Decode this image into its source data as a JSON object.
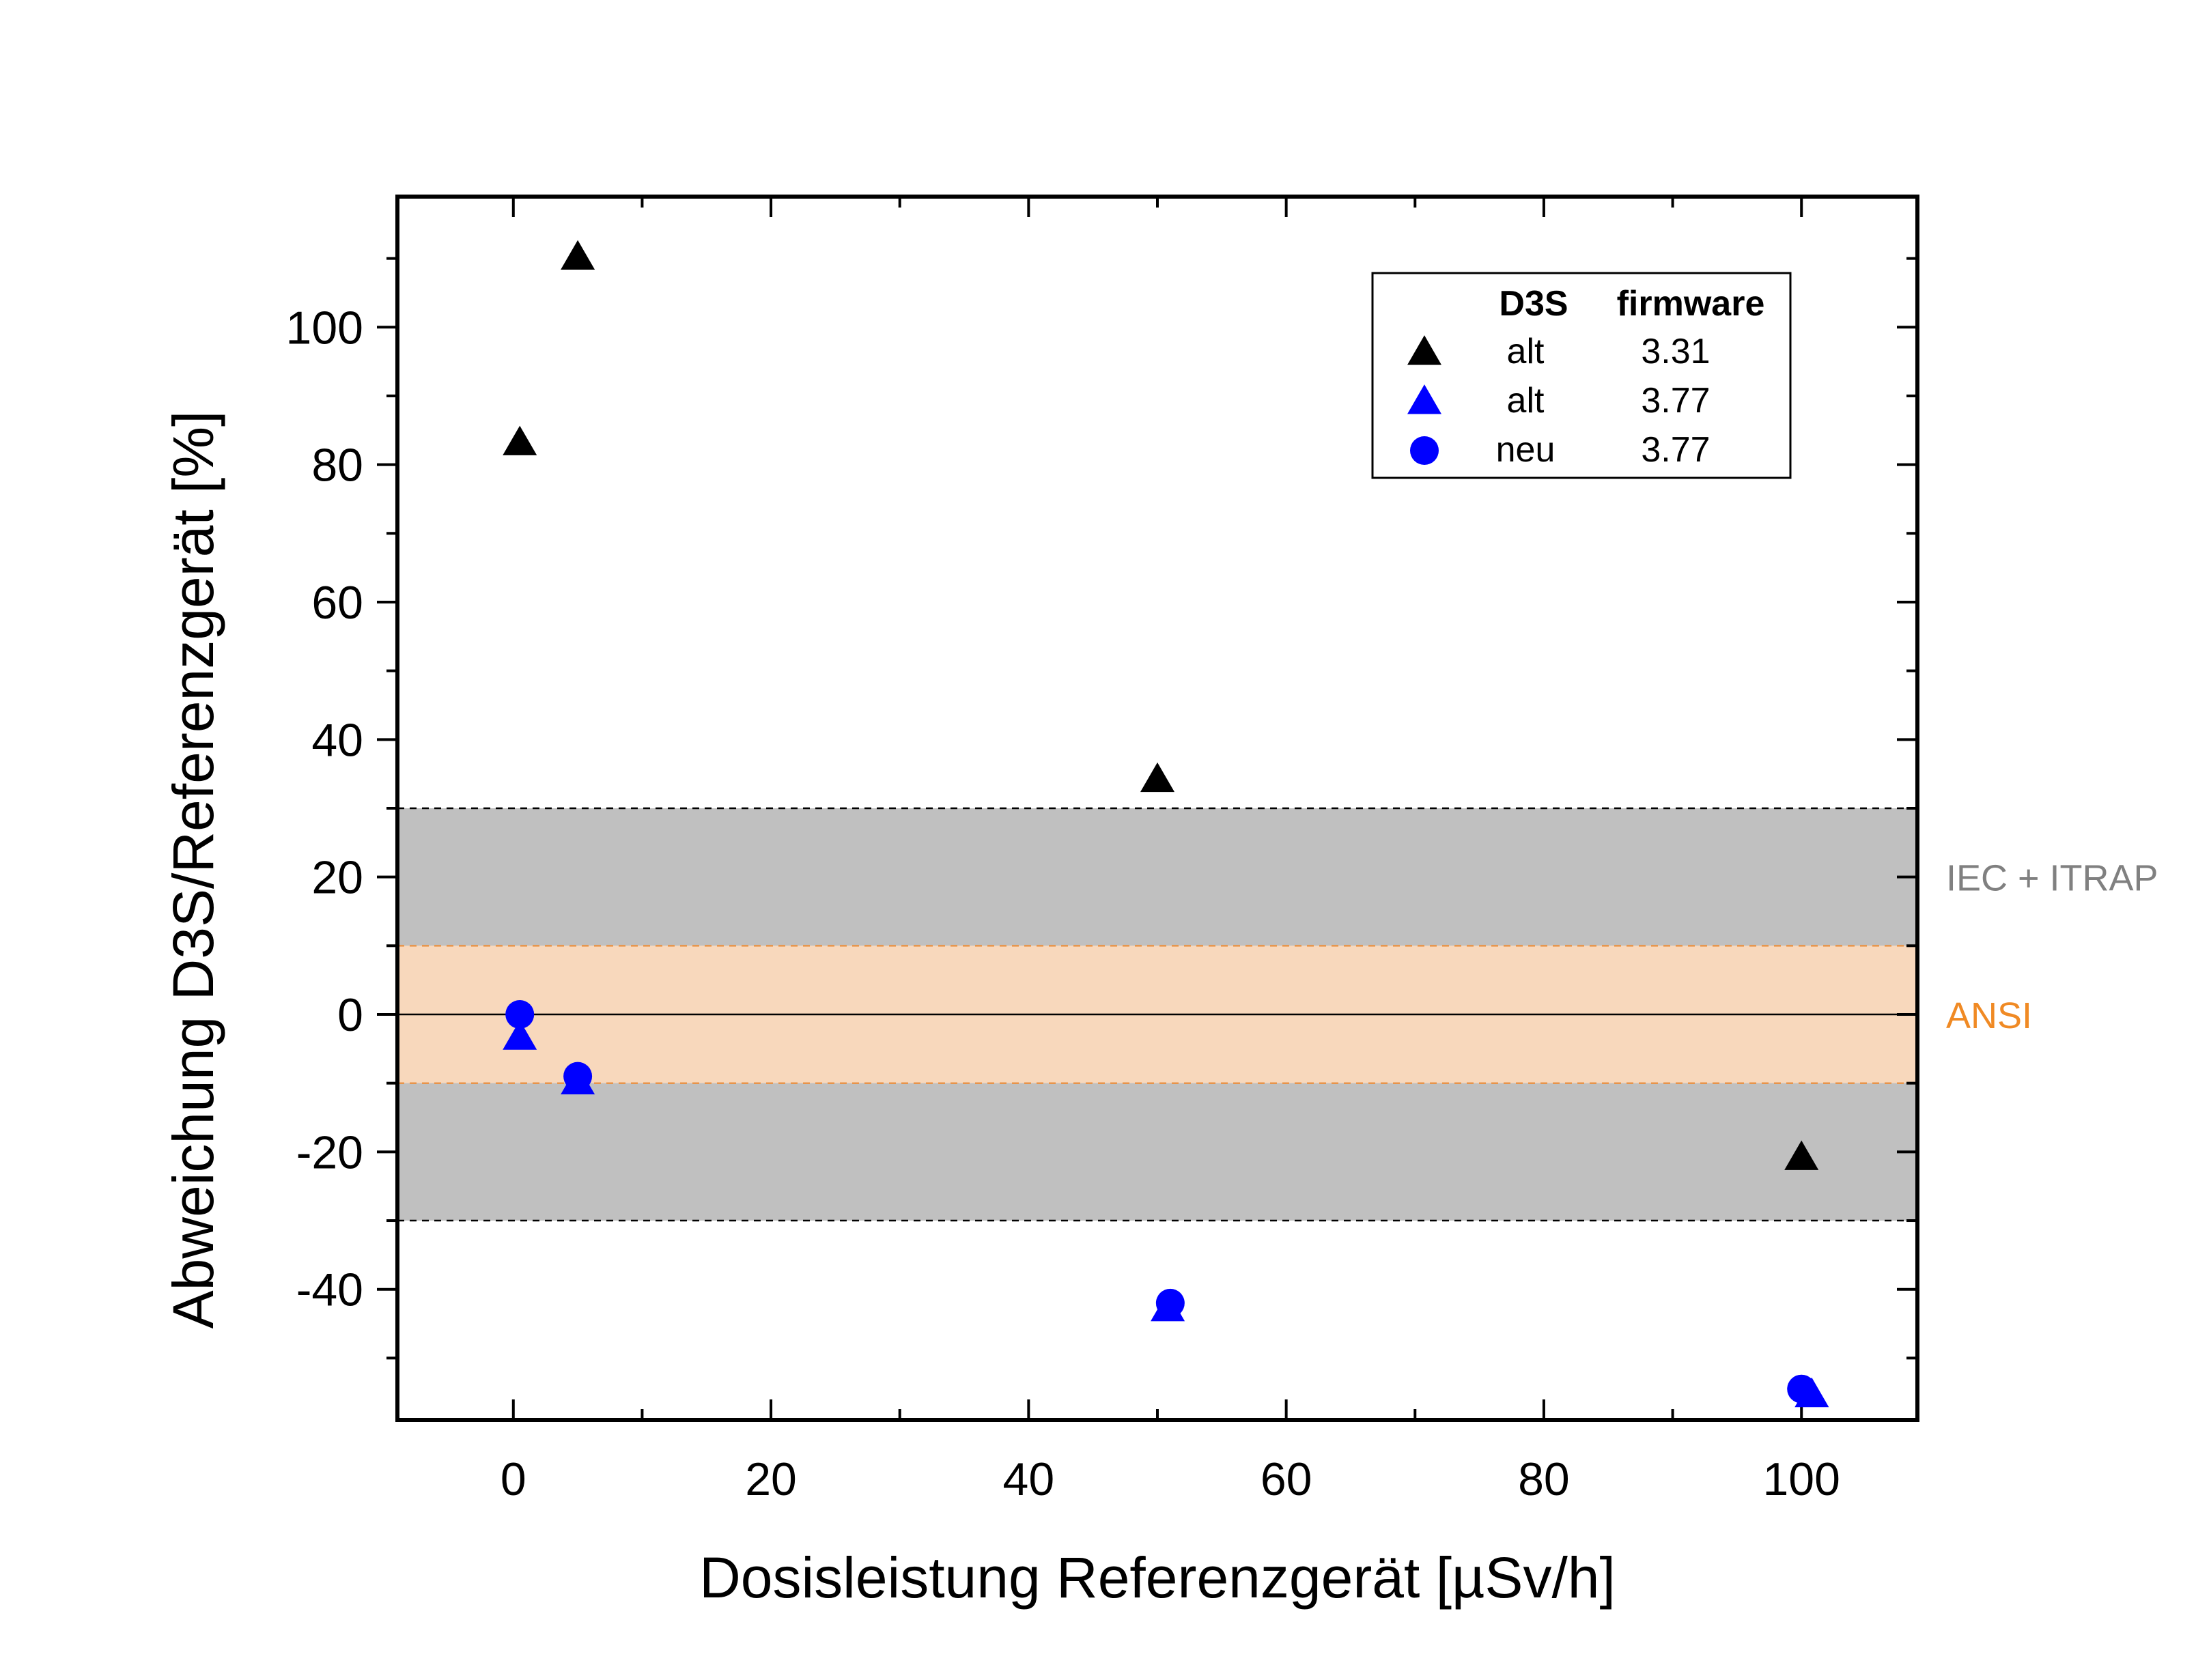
{
  "chart_data": {
    "type": "scatter",
    "title": "",
    "xlabel": "Dosisleistung Referenzgerät [µSv/h]",
    "ylabel": "Abweichung D3S/Referenzgerät [%]",
    "xlim": [
      -9,
      109
    ],
    "ylim": [
      -59,
      119
    ],
    "xticks": [
      0,
      20,
      40,
      60,
      80,
      100
    ],
    "yticks": [
      -40,
      -20,
      0,
      20,
      40,
      60,
      80,
      100
    ],
    "x_minor_step": 10,
    "y_minor_step": 10,
    "grid": false,
    "bands": [
      {
        "name": "IEC + ITRAP",
        "y0": -30,
        "y1": 30,
        "color": "#c0c0c0",
        "edge_color": "#000000",
        "label_color": "#808080"
      },
      {
        "name": "ANSI",
        "y0": -10,
        "y1": 10,
        "color": "#f8d8bc",
        "edge_color": "#e8944a",
        "label_color": "#f08a24"
      }
    ],
    "reference_line": 0,
    "legend": {
      "position": "top-right",
      "headers": [
        "D3S",
        "firmware"
      ]
    },
    "series": [
      {
        "d3s": "alt",
        "firmware": "3.31",
        "marker": "triangle",
        "color": "#000000",
        "points": [
          {
            "x": 0.5,
            "y": 83
          },
          {
            "x": 5,
            "y": 110
          },
          {
            "x": 50,
            "y": 34
          },
          {
            "x": 100,
            "y": -21
          }
        ]
      },
      {
        "d3s": "alt",
        "firmware": "3.77",
        "marker": "triangle",
        "color": "#0000ff",
        "points": [
          {
            "x": 0.5,
            "y": -3.5
          },
          {
            "x": 5,
            "y": -10
          },
          {
            "x": 50.8,
            "y": -43
          },
          {
            "x": 100.8,
            "y": -55.5
          }
        ]
      },
      {
        "d3s": "neu",
        "firmware": "3.77",
        "marker": "circle",
        "color": "#0000ff",
        "points": [
          {
            "x": 0.5,
            "y": 0
          },
          {
            "x": 5,
            "y": -9
          },
          {
            "x": 51,
            "y": -42
          },
          {
            "x": 100,
            "y": -54.5
          }
        ]
      }
    ]
  }
}
